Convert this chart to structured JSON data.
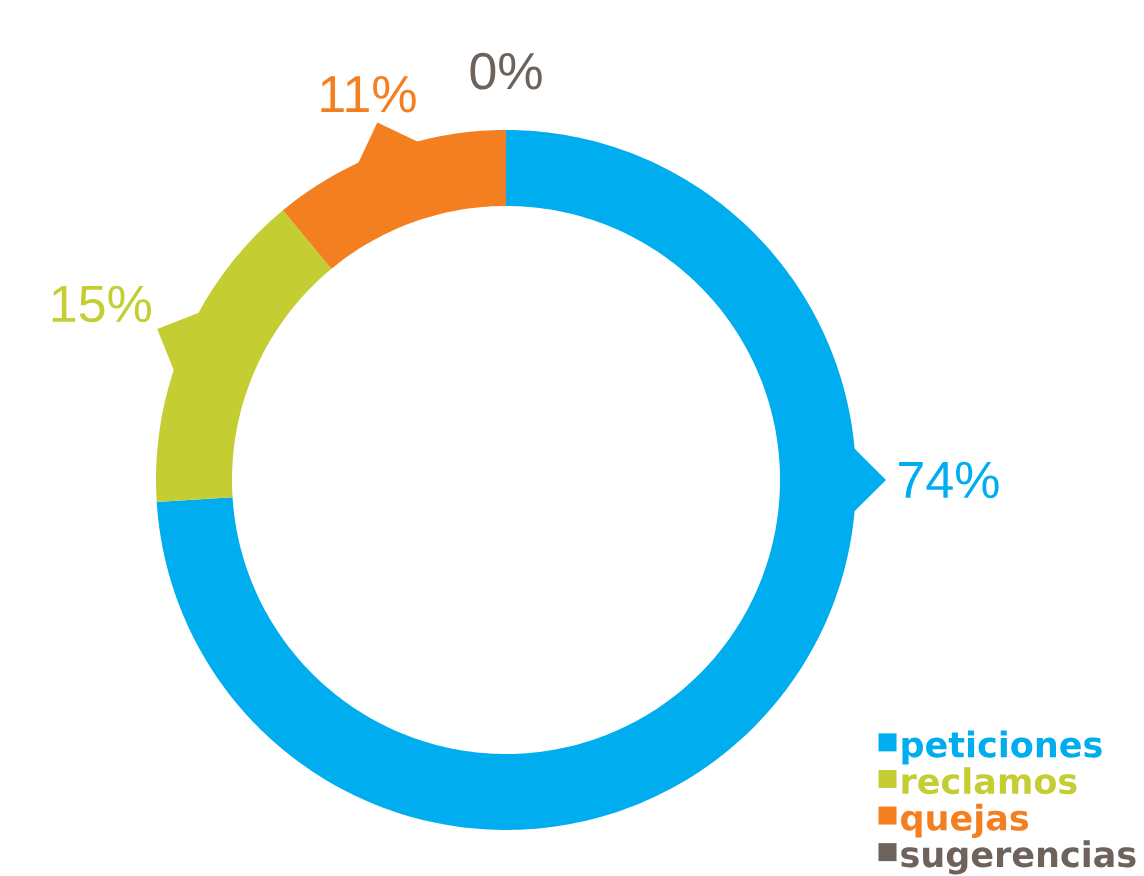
{
  "chart_data": {
    "type": "donut",
    "categories": [
      "peticiones",
      "reclamos",
      "quejas",
      "sugerencias"
    ],
    "values": [
      74,
      15,
      11,
      0
    ],
    "colors": [
      "#00aeef",
      "#c4cd32",
      "#f47f20",
      "#6d625c"
    ],
    "value_labels": [
      "74%",
      "15%",
      "11%",
      "0%"
    ],
    "legend": "bottom right"
  }
}
